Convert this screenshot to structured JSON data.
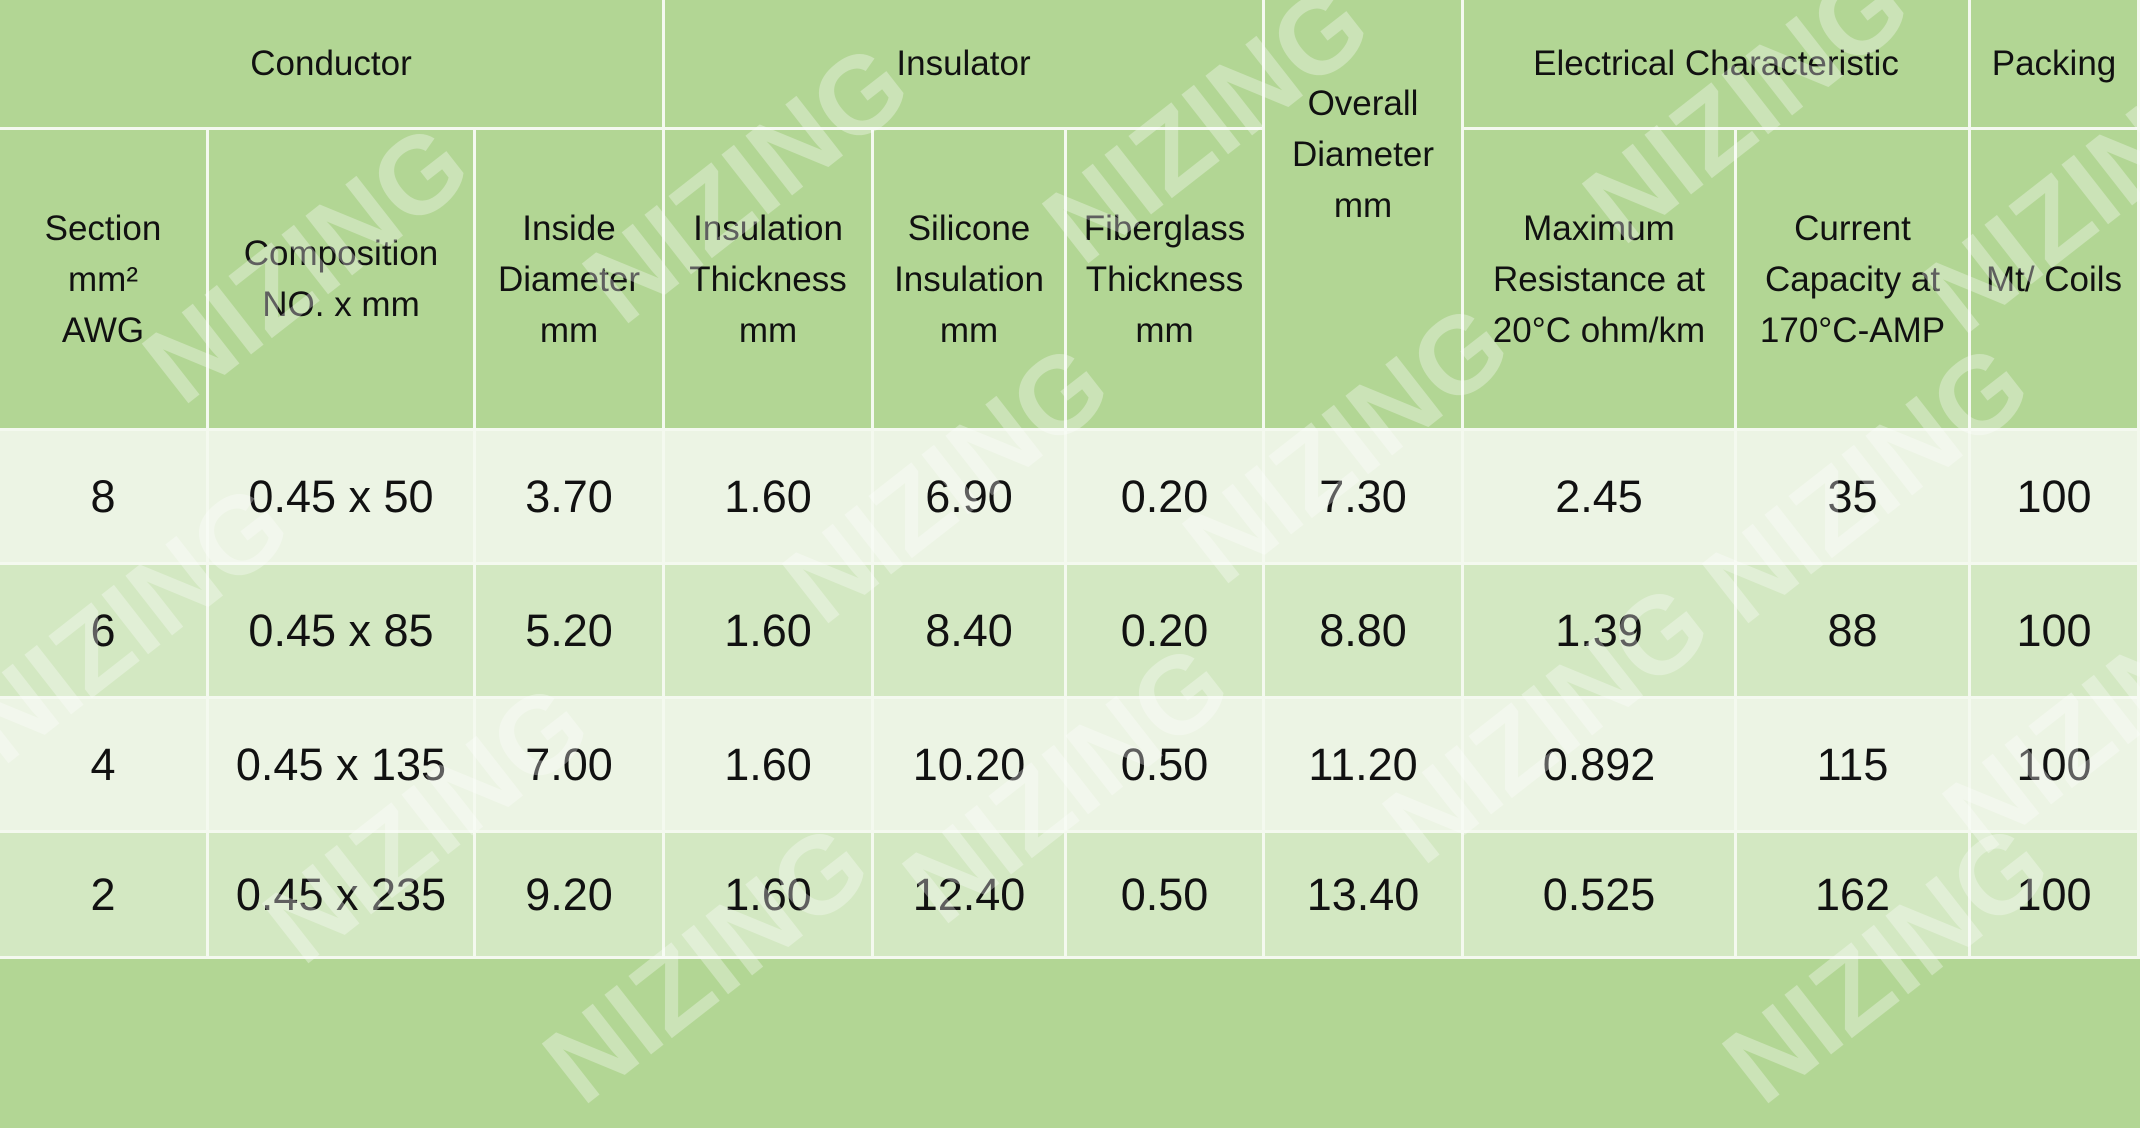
{
  "table": {
    "group_headers": [
      "Conductor",
      "Insulator",
      "Electrical Characteristic",
      "Packing"
    ],
    "column_headers": [
      [
        "Section",
        "mm²",
        "AWG"
      ],
      [
        "Composition",
        "NO. x mm"
      ],
      [
        "Inside",
        "Diameter",
        "mm"
      ],
      [
        "Insulation",
        "Thickness",
        "mm"
      ],
      [
        "Silicone",
        "Insulation",
        "mm"
      ],
      [
        "Fiberglass",
        "Thickness",
        "mm"
      ],
      [
        "Overall",
        "Diameter",
        "mm"
      ],
      [
        "Maximum",
        "Resistance at",
        "20°C ohm/km"
      ],
      [
        "Current",
        "Capacity at",
        "170°C-AMP"
      ],
      [
        "Mt/ Coils"
      ]
    ],
    "rows": [
      [
        "8",
        "0.45 x 50",
        "3.70",
        "1.60",
        "6.90",
        "0.20",
        "7.30",
        "2.45",
        "35",
        "100"
      ],
      [
        "6",
        "0.45 x 85",
        "5.20",
        "1.60",
        "8.40",
        "0.20",
        "8.80",
        "1.39",
        "88",
        "100"
      ],
      [
        "4",
        "0.45 x 135",
        "7.00",
        "1.60",
        "10.20",
        "0.50",
        "11.20",
        "0.892",
        "115",
        "100"
      ],
      [
        "2",
        "0.45 x 235",
        "9.20",
        "1.60",
        "12.40",
        "0.50",
        "13.40",
        "0.525",
        "162",
        "100"
      ]
    ]
  },
  "watermark": "NIZING"
}
